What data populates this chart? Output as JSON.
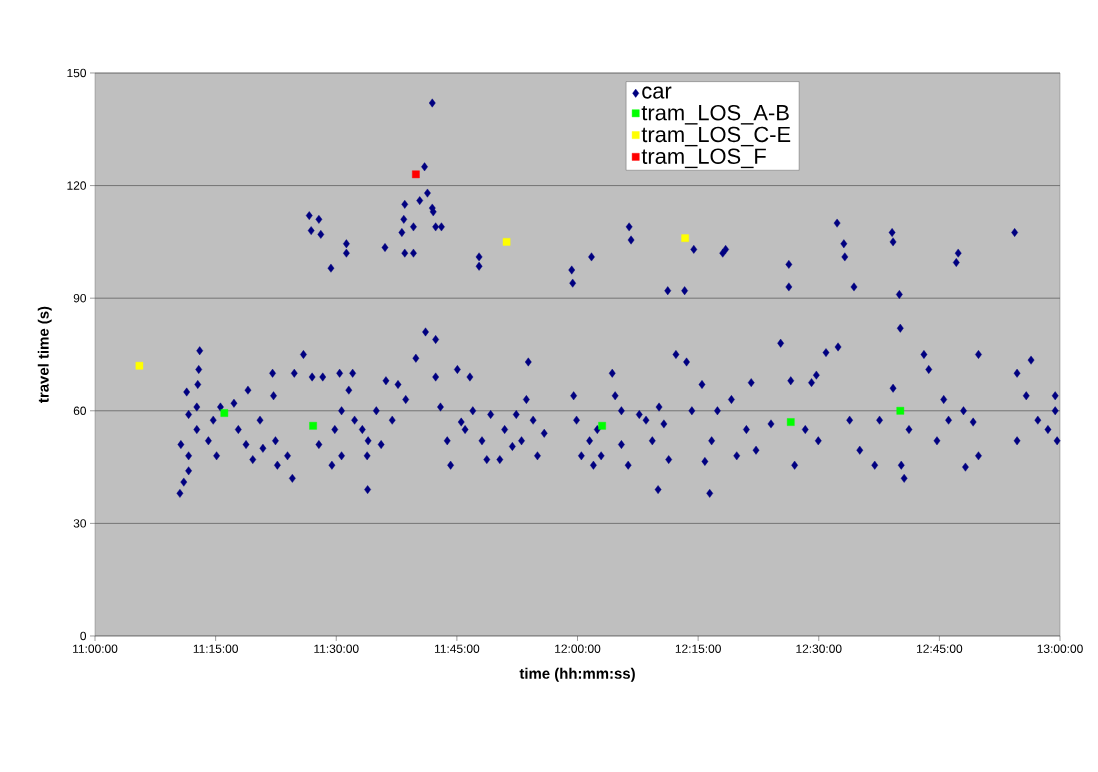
{
  "chart_data": {
    "type": "scatter",
    "xlabel": "time (hh:mm:ss)",
    "ylabel": "travel time (s)",
    "xlim": [
      11,
      13
    ],
    "ylim": [
      0,
      150
    ],
    "xticks": [
      {
        "value": 11,
        "label": "11:00:00"
      },
      {
        "value": 11.25,
        "label": "11:15:00"
      },
      {
        "value": 11.5,
        "label": "11:30:00"
      },
      {
        "value": 11.75,
        "label": "11:45:00"
      },
      {
        "value": 12,
        "label": "12:00:00"
      },
      {
        "value": 12.25,
        "label": "12:15:00"
      },
      {
        "value": 12.5,
        "label": "12:30:00"
      },
      {
        "value": 12.75,
        "label": "12:45:00"
      },
      {
        "value": 13,
        "label": "13:00:00"
      }
    ],
    "yticks": [
      0,
      30,
      60,
      90,
      120,
      150
    ],
    "grid": "y",
    "legend": "top",
    "series": [
      {
        "name": "car",
        "color": "#000080",
        "marker": "diamond",
        "x": [
          11.176,
          11.184,
          11.194,
          11.194,
          11.178,
          11.19,
          11.194,
          11.213,
          11.217,
          11.215,
          11.211,
          11.211,
          11.235,
          11.245,
          11.252,
          11.26,
          11.288,
          11.297,
          11.313,
          11.317,
          11.327,
          11.342,
          11.348,
          11.368,
          11.37,
          11.374,
          11.378,
          11.409,
          11.399,
          11.413,
          11.432,
          11.444,
          11.448,
          11.464,
          11.468,
          11.45,
          11.464,
          11.472,
          11.489,
          11.491,
          11.497,
          11.507,
          11.511,
          11.511,
          11.521,
          11.521,
          11.526,
          11.534,
          11.538,
          11.554,
          11.565,
          11.564,
          11.566,
          11.583,
          11.593,
          11.601,
          11.603,
          11.616,
          11.628,
          11.636,
          11.642,
          11.64,
          11.642,
          11.644,
          11.66,
          11.66,
          11.665,
          11.673,
          11.683,
          11.689,
          11.699,
          11.699,
          11.701,
          11.706,
          11.718,
          11.685,
          11.706,
          11.706,
          11.716,
          11.73,
          11.737,
          11.751,
          11.759,
          11.767,
          11.777,
          11.783,
          11.796,
          11.796,
          11.802,
          11.812,
          11.82,
          11.839,
          11.849,
          11.865,
          11.873,
          11.884,
          11.894,
          11.898,
          11.908,
          11.917,
          11.931,
          11.988,
          11.99,
          11.992,
          11.998,
          12.008,
          12.029,
          12.025,
          12.033,
          12.041,
          12.049,
          12.072,
          12.078,
          12.091,
          12.091,
          12.107,
          12.111,
          12.105,
          12.128,
          12.142,
          12.155,
          12.167,
          12.169,
          12.179,
          12.187,
          12.189,
          12.204,
          12.222,
          12.226,
          12.237,
          12.241,
          12.258,
          12.264,
          12.274,
          12.278,
          12.29,
          12.301,
          12.307,
          12.319,
          12.33,
          12.35,
          12.36,
          12.37,
          12.401,
          12.421,
          12.438,
          12.438,
          12.442,
          12.45,
          12.472,
          12.485,
          12.495,
          12.499,
          12.515,
          12.54,
          12.538,
          12.552,
          12.554,
          12.573,
          12.564,
          12.585,
          12.616,
          12.626,
          12.652,
          12.654,
          12.654,
          12.667,
          12.669,
          12.671,
          12.677,
          12.687,
          12.718,
          12.728,
          12.745,
          12.759,
          12.769,
          12.785,
          12.789,
          12.8,
          12.804,
          12.82,
          12.831,
          12.831,
          12.906,
          12.911,
          12.911,
          12.93,
          12.94,
          12.954,
          12.975,
          12.99,
          12.994,
          12.99
        ],
        "values": [
          38,
          41,
          44,
          48,
          51,
          65,
          59,
          67,
          76,
          71,
          61,
          55,
          52,
          57.5,
          48,
          61,
          62,
          55,
          51,
          65.5,
          47,
          57.5,
          50,
          70,
          64,
          52,
          45.5,
          42,
          48,
          70,
          75,
          112,
          108,
          111,
          107,
          69,
          51,
          69,
          98,
          45.5,
          55,
          70,
          60,
          48,
          104.5,
          102,
          65.5,
          70,
          57.5,
          55,
          39,
          48,
          52,
          60,
          51,
          103.5,
          68,
          57.5,
          67,
          107.5,
          115,
          111,
          102,
          63,
          102,
          109,
          74,
          116,
          125,
          118,
          142,
          114,
          113,
          109,
          109,
          81,
          79,
          69,
          61,
          52,
          45.5,
          71,
          57,
          55,
          69,
          60,
          101,
          98.5,
          52,
          47,
          59,
          47,
          55,
          50.5,
          59,
          52,
          63,
          73,
          57.5,
          48,
          54,
          97.5,
          94,
          64,
          57.5,
          48,
          101,
          52,
          45.5,
          55,
          48,
          70,
          64,
          60,
          51,
          109,
          105.5,
          45.5,
          59,
          57.5,
          52,
          39,
          61,
          56.5,
          92,
          47,
          75,
          92,
          73,
          60,
          103,
          67,
          46.5,
          38,
          52,
          60,
          102,
          103,
          63,
          48,
          55,
          67.5,
          49.5,
          56.5,
          78,
          99,
          93,
          68,
          45.5,
          55,
          67.5,
          69.5,
          52,
          75.5,
          77,
          110,
          104.5,
          101,
          93,
          57.5,
          49.5,
          45.5,
          57.5,
          107.5,
          105,
          66,
          91,
          82,
          45.5,
          42,
          55,
          75,
          71,
          52,
          63,
          57.5,
          99.5,
          102,
          60,
          45,
          57,
          75,
          48,
          107.5,
          70,
          52,
          64,
          73.5,
          57.5,
          55,
          60,
          52,
          64
        ]
      },
      {
        "name": "tram_LOS_A-B",
        "color": "#00ff00",
        "marker": "square",
        "x": [
          11.268,
          11.452,
          12.051,
          12.442,
          12.669
        ],
        "values": [
          59.4,
          56,
          56,
          57,
          60
        ]
      },
      {
        "name": "tram_LOS_C-E",
        "color": "#ffff00",
        "marker": "square",
        "x": [
          11.092,
          11.853,
          12.223
        ],
        "values": [
          72,
          105,
          106
        ]
      },
      {
        "name": "tram_LOS_F",
        "color": "#ff0000",
        "marker": "square",
        "x": [
          11.665
        ],
        "values": [
          123
        ]
      }
    ]
  }
}
